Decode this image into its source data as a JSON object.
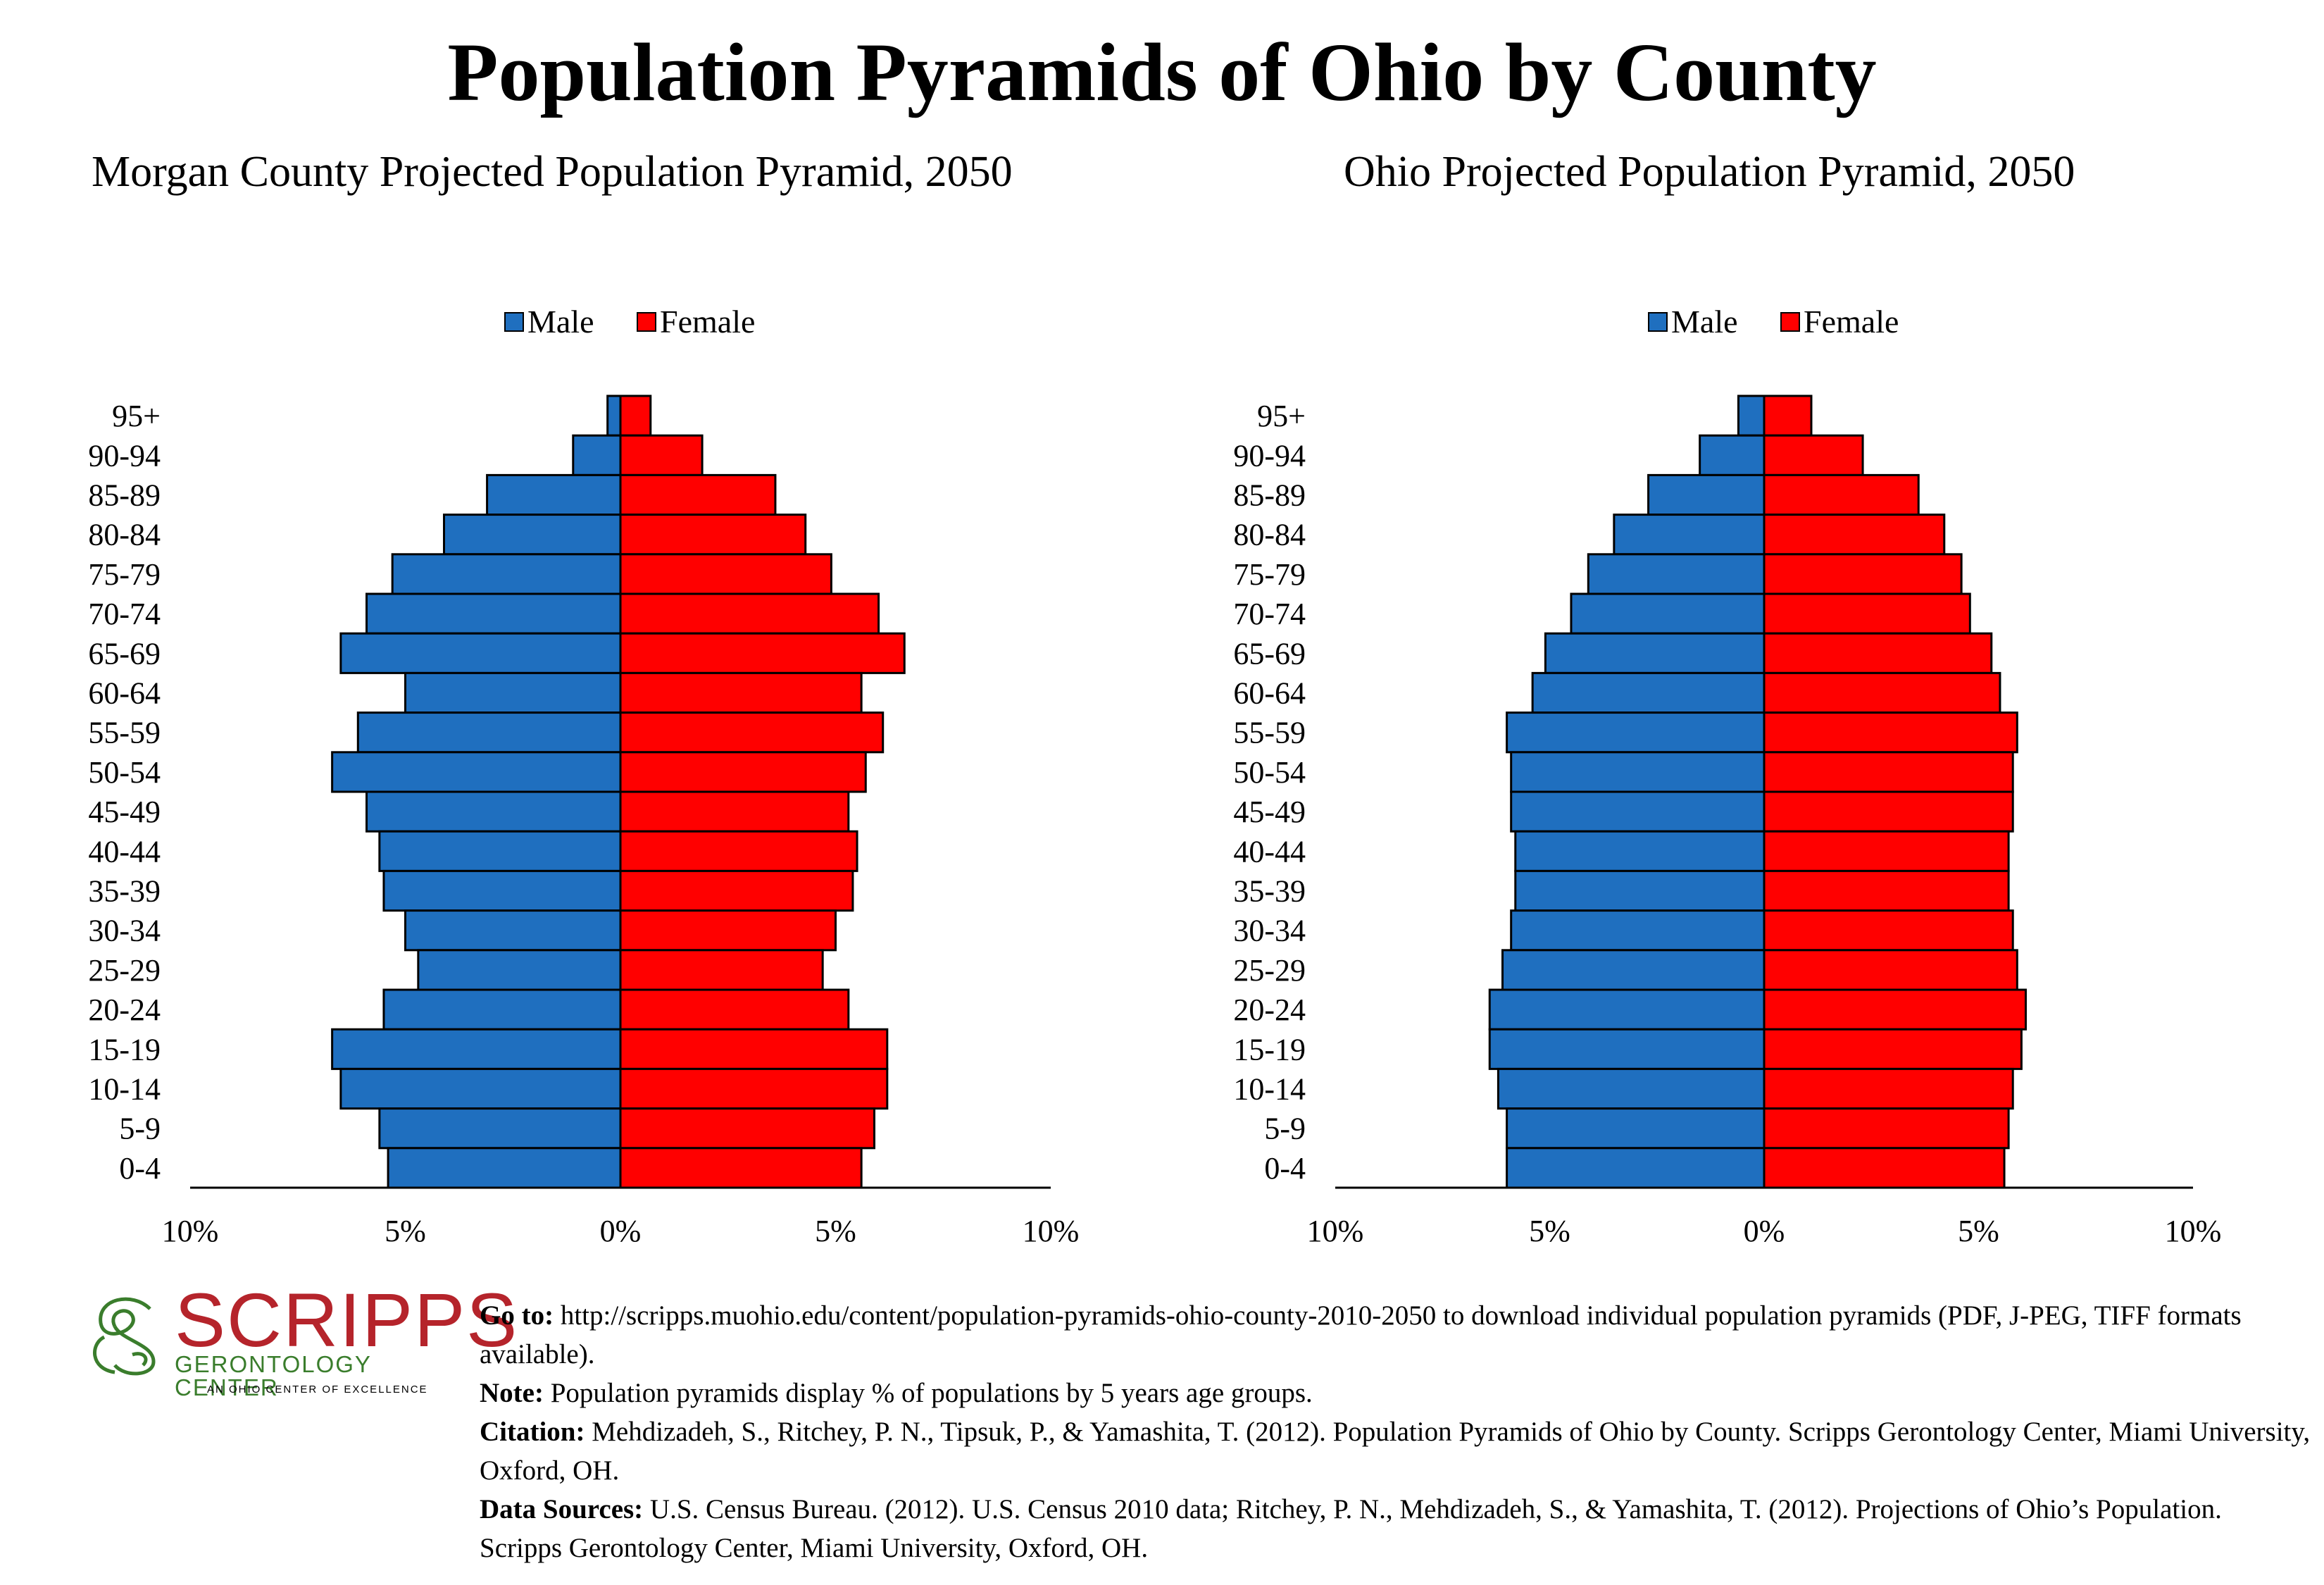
{
  "title": "Population Pyramids of Ohio by County",
  "colors": {
    "male": "#1F6FBF",
    "female": "#FF0000",
    "logo_red": "#B5242B",
    "logo_green": "#3A7D2C"
  },
  "chart_data": [
    {
      "type": "bar",
      "orientation": "horizontal-pyramid",
      "title": "Morgan County Projected Population Pyramid, 2050",
      "categories": [
        "95+",
        "90-94",
        "85-89",
        "80-84",
        "75-79",
        "70-74",
        "65-69",
        "60-64",
        "55-59",
        "50-54",
        "45-49",
        "40-44",
        "35-39",
        "30-34",
        "25-29",
        "20-24",
        "15-19",
        "10-14",
        "5-9",
        "0-4"
      ],
      "series": [
        {
          "name": "Male",
          "values": [
            0.3,
            1.1,
            3.1,
            4.1,
            5.3,
            5.9,
            6.5,
            5.0,
            6.1,
            6.7,
            5.9,
            5.6,
            5.5,
            5.0,
            4.7,
            5.5,
            6.7,
            6.5,
            5.6,
            5.4
          ]
        },
        {
          "name": "Female",
          "values": [
            0.7,
            1.9,
            3.6,
            4.3,
            4.9,
            6.0,
            6.6,
            5.6,
            6.1,
            5.7,
            5.3,
            5.5,
            5.4,
            5.0,
            4.7,
            5.3,
            6.2,
            6.2,
            5.9,
            5.6
          ]
        }
      ],
      "xlim": [
        -10,
        10
      ],
      "x_tick_labels": [
        "10%",
        "5%",
        "0%",
        "5%",
        "10%"
      ],
      "legend_position": "top-center"
    },
    {
      "type": "bar",
      "orientation": "horizontal-pyramid",
      "title": "Ohio Projected Population Pyramid, 2050",
      "categories": [
        "95+",
        "90-94",
        "85-89",
        "80-84",
        "75-79",
        "70-74",
        "65-69",
        "60-64",
        "55-59",
        "50-54",
        "45-49",
        "40-44",
        "35-39",
        "30-34",
        "25-29",
        "20-24",
        "15-19",
        "10-14",
        "5-9",
        "0-4"
      ],
      "series": [
        {
          "name": "Male",
          "values": [
            0.6,
            1.5,
            2.7,
            3.5,
            4.1,
            4.5,
            5.1,
            5.4,
            6.0,
            5.9,
            5.9,
            5.8,
            5.8,
            5.9,
            6.1,
            6.4,
            6.4,
            6.2,
            6.0,
            6.0
          ]
        },
        {
          "name": "Female",
          "values": [
            1.1,
            2.3,
            3.6,
            4.2,
            4.6,
            4.8,
            5.3,
            5.5,
            5.9,
            5.8,
            5.8,
            5.7,
            5.7,
            5.8,
            5.9,
            6.1,
            6.0,
            5.8,
            5.7,
            5.6
          ]
        }
      ],
      "xlim": [
        -10,
        10
      ],
      "x_tick_labels": [
        "10%",
        "5%",
        "0%",
        "5%",
        "10%"
      ],
      "legend_position": "top-center"
    }
  ],
  "logo": {
    "word": "SCRIPPS",
    "subtitle": "GERONTOLOGY CENTER",
    "tagline": "AN OHIO CENTER OF EXCELLENCE"
  },
  "footer": {
    "goto_label": "Go to:",
    "goto_text": " http://scripps.muohio.edu/content/population-pyramids-ohio-county-2010-2050 to download individual population pyramids (PDF, J-PEG, TIFF formats available).",
    "note_label": "Note:",
    "note_text": " Population pyramids display % of populations by 5 years age groups.",
    "citation_label": "Citation:",
    "citation_text": " Mehdizadeh, S., Ritchey, P. N., Tipsuk, P., & Yamashita, T. (2012). Population Pyramids of Ohio by County. Scripps Gerontology Center, Miami University, Oxford, OH.",
    "sources_label": "Data Sources:",
    "sources_text": " U.S. Census Bureau. (2012). U.S. Census 2010 data; Ritchey, P. N., Mehdizadeh, S., & Yamashita, T. (2012). Projections of Ohio’s Population. Scripps Gerontology Center, Miami University, Oxford, OH."
  }
}
